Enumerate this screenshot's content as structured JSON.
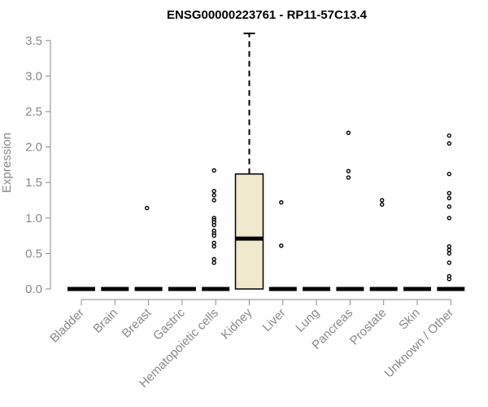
{
  "chart_data": {
    "type": "box",
    "title": "ENSG00000223761 - RP11-57C13.4",
    "xlabel": "",
    "ylabel": "Expression",
    "ylim": [
      0,
      3.6
    ],
    "yticks": [
      "0.0",
      "0.5",
      "1.0",
      "1.5",
      "2.0",
      "2.5",
      "3.0",
      "3.5"
    ],
    "grid": false,
    "colors": {
      "box_fill": "#EFE8CC",
      "axis": "#888888",
      "median": "#000000"
    },
    "categories": [
      "Bladder",
      "Brain",
      "Breast",
      "Gastric",
      "Hematopoietic cells",
      "Kidney",
      "Liver",
      "Lung",
      "Pancreas",
      "Prostate",
      "Skin",
      "Unknown / Other"
    ],
    "boxes": [
      {
        "category": "Bladder",
        "q1": 0,
        "median": 0,
        "q3": 0,
        "whisker_low": 0,
        "whisker_high": 0,
        "outliers": []
      },
      {
        "category": "Brain",
        "q1": 0,
        "median": 0,
        "q3": 0,
        "whisker_low": 0,
        "whisker_high": 0,
        "outliers": []
      },
      {
        "category": "Breast",
        "q1": 0,
        "median": 0,
        "q3": 0,
        "whisker_low": 0,
        "whisker_high": 0,
        "outliers": [
          1.14
        ]
      },
      {
        "category": "Gastric",
        "q1": 0,
        "median": 0,
        "q3": 0,
        "whisker_low": 0,
        "whisker_high": 0,
        "outliers": []
      },
      {
        "category": "Hematopoietic cells",
        "q1": 0,
        "median": 0,
        "q3": 0,
        "whisker_low": 0,
        "whisker_high": 0,
        "outliers": [
          1.67,
          1.38,
          1.32,
          1.25,
          1.0,
          0.97,
          0.94,
          0.9,
          0.82,
          0.78,
          0.75,
          0.65,
          0.6,
          0.42,
          0.37
        ]
      },
      {
        "category": "Kidney",
        "q1": 0,
        "median": 0.71,
        "q3": 1.62,
        "whisker_low": 0,
        "whisker_high": 3.6,
        "outliers": []
      },
      {
        "category": "Liver",
        "q1": 0,
        "median": 0,
        "q3": 0,
        "whisker_low": 0,
        "whisker_high": 0,
        "outliers": [
          1.22,
          0.61
        ]
      },
      {
        "category": "Lung",
        "q1": 0,
        "median": 0,
        "q3": 0,
        "whisker_low": 0,
        "whisker_high": 0,
        "outliers": []
      },
      {
        "category": "Pancreas",
        "q1": 0,
        "median": 0,
        "q3": 0,
        "whisker_low": 0,
        "whisker_high": 0,
        "outliers": [
          2.2,
          1.66,
          1.57
        ]
      },
      {
        "category": "Prostate",
        "q1": 0,
        "median": 0,
        "q3": 0,
        "whisker_low": 0,
        "whisker_high": 0,
        "outliers": [
          1.25,
          1.19
        ]
      },
      {
        "category": "Skin",
        "q1": 0,
        "median": 0,
        "q3": 0,
        "whisker_low": 0,
        "whisker_high": 0,
        "outliers": []
      },
      {
        "category": "Unknown / Other",
        "q1": 0,
        "median": 0,
        "q3": 0,
        "whisker_low": 0,
        "whisker_high": 0,
        "outliers": [
          2.16,
          2.05,
          1.62,
          1.35,
          1.28,
          1.16,
          1.0,
          0.6,
          0.55,
          0.5,
          0.37,
          0.18,
          0.14
        ]
      }
    ]
  }
}
